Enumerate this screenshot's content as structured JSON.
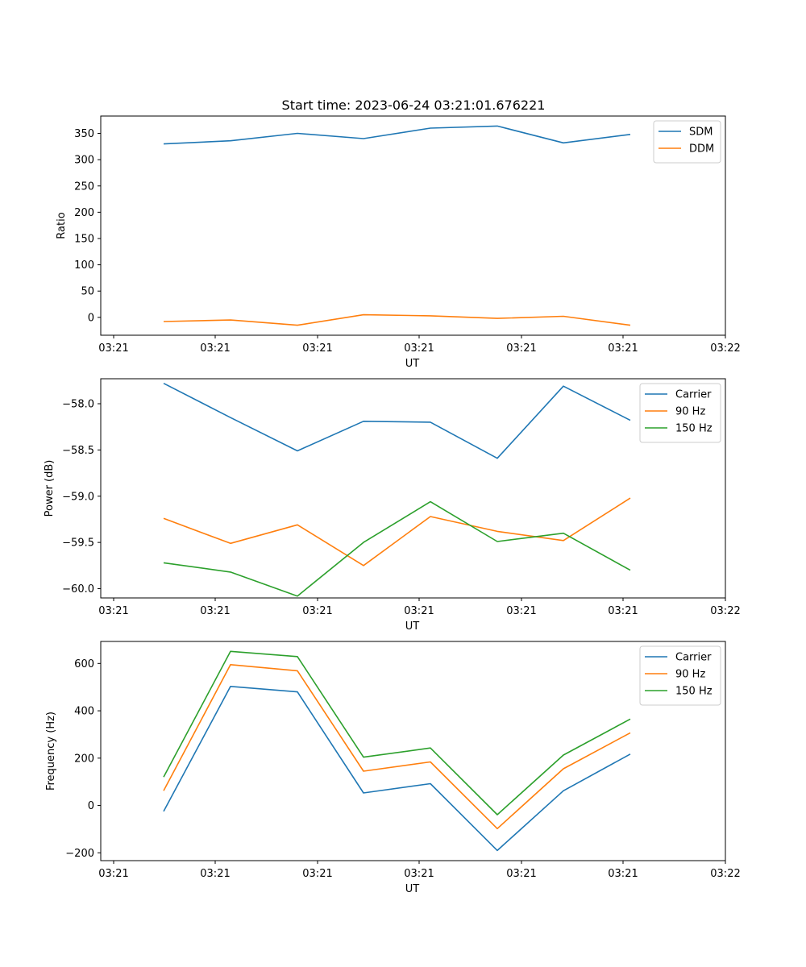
{
  "title": "Start time: 2023-06-24 03:21:01.676221",
  "colors": {
    "C0": "#1f77b4",
    "C1": "#ff7f0e",
    "C2": "#2ca02c"
  },
  "chart_data": [
    {
      "type": "line",
      "xlabel": "UT",
      "ylabel": "Ratio",
      "x_tick_labels": [
        "03:21",
        "03:21",
        "03:21",
        "03:21",
        "03:21",
        "03:21",
        "03:22"
      ],
      "y_ticks": [
        0,
        50,
        100,
        150,
        200,
        250,
        300,
        350
      ],
      "ylim": [
        -34,
        383
      ],
      "legend_position": "top-right",
      "grid": false,
      "series": [
        {
          "name": "SDM",
          "color": "#1f77b4",
          "values": [
            330,
            336,
            350,
            340,
            360,
            364,
            332,
            348
          ]
        },
        {
          "name": "DDM",
          "color": "#ff7f0e",
          "values": [
            -8,
            -5,
            -15,
            5,
            3,
            -2,
            2,
            -15
          ]
        }
      ]
    },
    {
      "type": "line",
      "xlabel": "UT",
      "ylabel": "Power (dB)",
      "x_tick_labels": [
        "03:21",
        "03:21",
        "03:21",
        "03:21",
        "03:21",
        "03:21",
        "03:22"
      ],
      "y_ticks": [
        -58.0,
        -58.5,
        -59.0,
        -59.5,
        -60.0
      ],
      "y_tick_labels": [
        "−58.0",
        "−58.5",
        "−59.0",
        "−59.5",
        "−60.0"
      ],
      "ylim": [
        -60.1,
        -57.73
      ],
      "legend_position": "top-right",
      "grid": false,
      "series": [
        {
          "name": "Carrier",
          "color": "#1f77b4",
          "values": [
            -57.78,
            -58.15,
            -58.51,
            -58.19,
            -58.2,
            -58.59,
            -57.81,
            -58.18
          ]
        },
        {
          "name": "90 Hz",
          "color": "#ff7f0e",
          "values": [
            -59.24,
            -59.51,
            -59.31,
            -59.75,
            -59.22,
            -59.38,
            -59.48,
            -59.02
          ]
        },
        {
          "name": "150 Hz",
          "color": "#2ca02c",
          "values": [
            -59.72,
            -59.82,
            -60.08,
            -59.5,
            -59.06,
            -59.49,
            -59.4,
            -59.8
          ]
        }
      ]
    },
    {
      "type": "line",
      "xlabel": "UT",
      "ylabel": "Frequency (Hz)",
      "x_tick_labels": [
        "03:21",
        "03:21",
        "03:21",
        "03:21",
        "03:21",
        "03:21",
        "03:22"
      ],
      "y_ticks": [
        -200,
        0,
        200,
        400,
        600
      ],
      "y_tick_labels": [
        "−200",
        "0",
        "200",
        "400",
        "600"
      ],
      "ylim": [
        -233,
        693
      ],
      "legend_position": "top-right",
      "grid": false,
      "series": [
        {
          "name": "Carrier",
          "color": "#1f77b4",
          "values": [
            -25,
            503,
            480,
            53,
            92,
            -190,
            62,
            217
          ]
        },
        {
          "name": "90 Hz",
          "color": "#ff7f0e",
          "values": [
            62,
            595,
            569,
            145,
            184,
            -98,
            155,
            307
          ]
        },
        {
          "name": "150 Hz",
          "color": "#2ca02c",
          "values": [
            120,
            651,
            629,
            204,
            243,
            -39,
            213,
            365
          ]
        }
      ]
    }
  ]
}
